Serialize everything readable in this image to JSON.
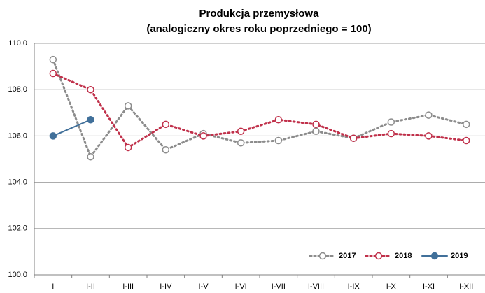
{
  "chart_data": {
    "type": "line",
    "title": "Produkcja przemysłowa",
    "subtitle": "(analogiczny okres roku poprzedniego = 100)",
    "categories": [
      "I",
      "I-II",
      "I-III",
      "I-IV",
      "I-V",
      "I-VI",
      "I-VII",
      "I-VIII",
      "I-IX",
      "I-X",
      "I-XI",
      "I-XII"
    ],
    "series": [
      {
        "name": "2017",
        "color": "#8c8c8c",
        "line_style": "dotted",
        "marker": "open",
        "values": [
          109.3,
          105.1,
          107.3,
          105.4,
          106.1,
          105.7,
          105.8,
          106.2,
          105.9,
          106.6,
          106.9,
          106.5
        ]
      },
      {
        "name": "2018",
        "color": "#c0304a",
        "line_style": "dotted",
        "marker": "open",
        "values": [
          108.7,
          108.0,
          105.5,
          106.5,
          106.0,
          106.2,
          106.7,
          106.5,
          105.9,
          106.1,
          106.0,
          105.8
        ]
      },
      {
        "name": "2019",
        "color": "#41709a",
        "line_style": "solid",
        "marker": "filled",
        "values": [
          106.0,
          106.7,
          null,
          null,
          null,
          null,
          null,
          null,
          null,
          null,
          null,
          null
        ]
      }
    ],
    "ylim": [
      100,
      110
    ],
    "yticks": [
      {
        "value": 100,
        "label": "100,0"
      },
      {
        "value": 102,
        "label": "102,0"
      },
      {
        "value": 104,
        "label": "104,0"
      },
      {
        "value": 106,
        "label": "106,0"
      },
      {
        "value": 108,
        "label": "108,0"
      },
      {
        "value": 110,
        "label": "110,0"
      }
    ],
    "grid": true,
    "legend": "lower right"
  }
}
